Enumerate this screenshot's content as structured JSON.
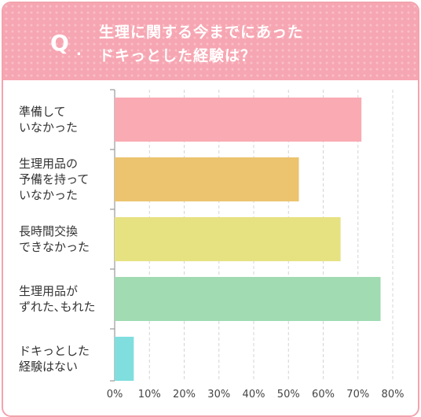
{
  "question_mark": "Q",
  "question_dot": ".",
  "title_lines": [
    "生理に関する今までにあった",
    "ドキっとした経験は？"
  ],
  "chart_data": {
    "type": "bar",
    "orientation": "horizontal",
    "title": "生理に関する今までにあったドキっとした経験は？",
    "categories": [
      [
        "準備して",
        "いなかった"
      ],
      [
        "生理用品の",
        "予備を持って",
        "いなかった"
      ],
      [
        "長時間交換",
        "できなかった"
      ],
      [
        "生理用品が",
        "ずれた､もれた"
      ],
      [
        "ドキっとした",
        "経験はない"
      ]
    ],
    "values": [
      71,
      53,
      65,
      76.5,
      5.5
    ],
    "colors": [
      "#f9aab3",
      "#ecc46f",
      "#e6e282",
      "#a0dbb2",
      "#80dede"
    ],
    "xlim": [
      0,
      80
    ],
    "ticks": [
      0,
      10,
      20,
      30,
      40,
      50,
      60,
      70,
      80
    ],
    "tick_labels": [
      "0%",
      "10%",
      "20%",
      "30%",
      "40%",
      "50%",
      "60%",
      "70%",
      "80%"
    ],
    "grid": true
  }
}
